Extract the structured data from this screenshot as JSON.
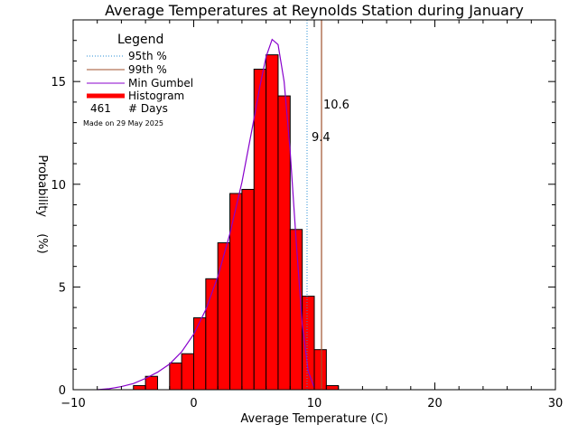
{
  "chart_data": {
    "type": "bar",
    "title": "Average Temperatures at Reynolds Station during January",
    "xlabel": "Average Temperature (C)",
    "ylabel_top": "Probability",
    "ylabel_bottom": "(%)",
    "xlim": [
      -10,
      30
    ],
    "ylim": [
      0,
      18
    ],
    "xticks": [
      -10,
      0,
      10,
      20,
      30
    ],
    "yticks": [
      0,
      5,
      10,
      15
    ],
    "bin_width": 1,
    "bins": [
      {
        "x0": -5,
        "value": 0.2
      },
      {
        "x0": -4,
        "value": 0.65
      },
      {
        "x0": -3,
        "value": 0.0
      },
      {
        "x0": -2,
        "value": 1.3
      },
      {
        "x0": -1,
        "value": 1.75
      },
      {
        "x0": 0,
        "value": 3.5
      },
      {
        "x0": 1,
        "value": 5.4
      },
      {
        "x0": 2,
        "value": 7.15
      },
      {
        "x0": 3,
        "value": 9.55
      },
      {
        "x0": 4,
        "value": 9.75
      },
      {
        "x0": 5,
        "value": 15.6
      },
      {
        "x0": 6,
        "value": 16.3
      },
      {
        "x0": 7,
        "value": 14.3
      },
      {
        "x0": 8,
        "value": 7.8
      },
      {
        "x0": 9,
        "value": 4.55
      },
      {
        "x0": 10,
        "value": 1.95
      },
      {
        "x0": 11,
        "value": 0.2
      }
    ],
    "gumbel_curve": {
      "x": [
        -8,
        -7,
        -6,
        -5,
        -4,
        -3,
        -2,
        -1,
        0,
        1,
        2,
        3,
        4,
        5,
        5.5,
        6,
        6.5,
        7,
        7.5,
        8,
        8.5,
        9,
        9.5,
        10
      ],
      "y": [
        0.0,
        0.05,
        0.15,
        0.3,
        0.55,
        0.85,
        1.25,
        1.85,
        2.7,
        3.9,
        5.5,
        7.6,
        10.1,
        13.2,
        14.8,
        16.2,
        17.05,
        16.8,
        15.0,
        11.6,
        7.2,
        3.2,
        0.9,
        0.1
      ]
    },
    "percentile_95": 9.4,
    "percentile_99": 10.6,
    "percentile_95_label": "9.4",
    "percentile_99_label": "10.6",
    "legend": {
      "title": "Legend",
      "p95": "95th %",
      "p99": "99th %",
      "gumbel": "Min Gumbel",
      "histogram": "Histogram",
      "days_count": "461",
      "days_label": "# Days",
      "made_on": "Made on 29 May 2025"
    },
    "colors": {
      "histogram": "#ff0000",
      "gumbel": "#8800cc",
      "p95": "#2a8fd6",
      "p99": "#a0522d",
      "made_on": "#c8c8c8"
    },
    "grid": false,
    "legend_position": "top-left"
  }
}
